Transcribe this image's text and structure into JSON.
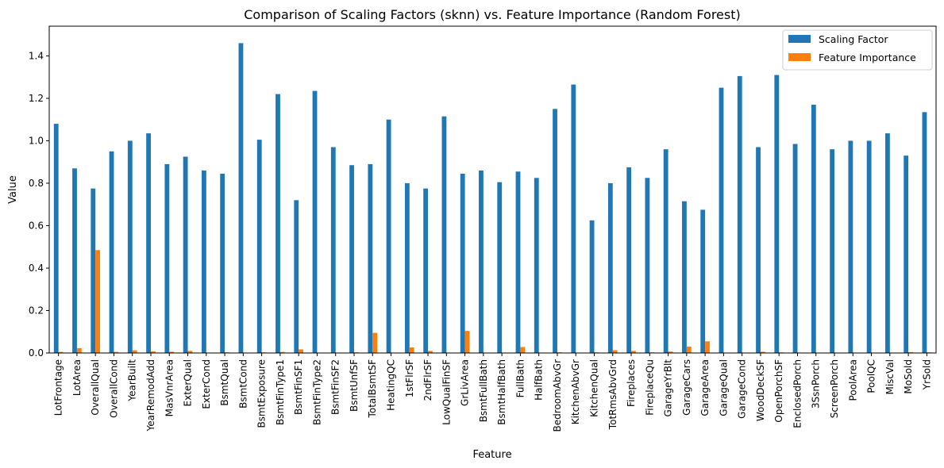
{
  "chart_data": {
    "type": "bar",
    "title": "Comparison of Scaling Factors (sknn) vs. Feature Importance (Random Forest)",
    "xlabel": "Feature",
    "ylabel": "Value",
    "ylim": [
      0,
      1.54
    ],
    "yticks": [
      0.0,
      0.2,
      0.4,
      0.6,
      0.8,
      1.0,
      1.2,
      1.4
    ],
    "ytick_labels": [
      "0.0",
      "0.2",
      "0.4",
      "0.6",
      "0.8",
      "1.0",
      "1.2",
      "1.4"
    ],
    "grid": false,
    "legend": "top-right",
    "categories": [
      "LotFrontage",
      "LotArea",
      "OverallQual",
      "OverallCond",
      "YearBuilt",
      "YearRemodAdd",
      "MasVnrArea",
      "ExterQual",
      "ExterCond",
      "BsmtQual",
      "BsmtCond",
      "BsmtExposure",
      "BsmtFinType1",
      "BsmtFinSF1",
      "BsmtFinType2",
      "BsmtFinSF2",
      "BsmtUnfSF",
      "TotalBsmtSF",
      "HeatingQC",
      "1stFlrSF",
      "2ndFlrSF",
      "LowQualFinSF",
      "GrLivArea",
      "BsmtFullBath",
      "BsmtHalfBath",
      "FullBath",
      "HalfBath",
      "BedroomAbvGr",
      "KitchenAbvGr",
      "KitchenQual",
      "TotRmsAbvGrd",
      "Fireplaces",
      "FireplaceQu",
      "GarageYrBlt",
      "GarageCars",
      "GarageArea",
      "GarageQual",
      "GarageCond",
      "WoodDeckSF",
      "OpenPorchSF",
      "EnclosedPorch",
      "3SsnPorch",
      "ScreenPorch",
      "PoolArea",
      "PoolQC",
      "MiscVal",
      "MoSold",
      "YrSold"
    ],
    "series": [
      {
        "name": "Scaling Factor",
        "color": "#1f77b4",
        "values": [
          1.08,
          0.87,
          0.775,
          0.95,
          1.0,
          1.035,
          0.89,
          0.925,
          0.86,
          0.845,
          1.46,
          1.005,
          1.22,
          0.72,
          1.235,
          0.97,
          0.885,
          0.89,
          1.1,
          0.8,
          0.775,
          1.115,
          0.845,
          0.86,
          0.805,
          0.855,
          0.825,
          1.15,
          1.265,
          0.625,
          0.8,
          0.875,
          0.825,
          0.96,
          0.715,
          0.675,
          1.25,
          1.305,
          0.97,
          1.31,
          0.985,
          1.17,
          0.96,
          1.0,
          1.0,
          1.035,
          0.93,
          1.135
        ]
      },
      {
        "name": "Feature Importance",
        "color": "#ff7f0e",
        "values": [
          0.005,
          0.023,
          0.485,
          0.005,
          0.013,
          0.008,
          0.006,
          0.01,
          0.002,
          0.003,
          0.001,
          0.003,
          0.005,
          0.017,
          0.001,
          0.001,
          0.003,
          0.095,
          0.002,
          0.026,
          0.01,
          0.0,
          0.104,
          0.002,
          0.001,
          0.028,
          0.002,
          0.003,
          0.001,
          0.003,
          0.013,
          0.01,
          0.003,
          0.007,
          0.03,
          0.055,
          0.001,
          0.002,
          0.006,
          0.003,
          0.002,
          0.0,
          0.002,
          0.0,
          0.0,
          0.001,
          0.004,
          0.003
        ]
      }
    ]
  }
}
